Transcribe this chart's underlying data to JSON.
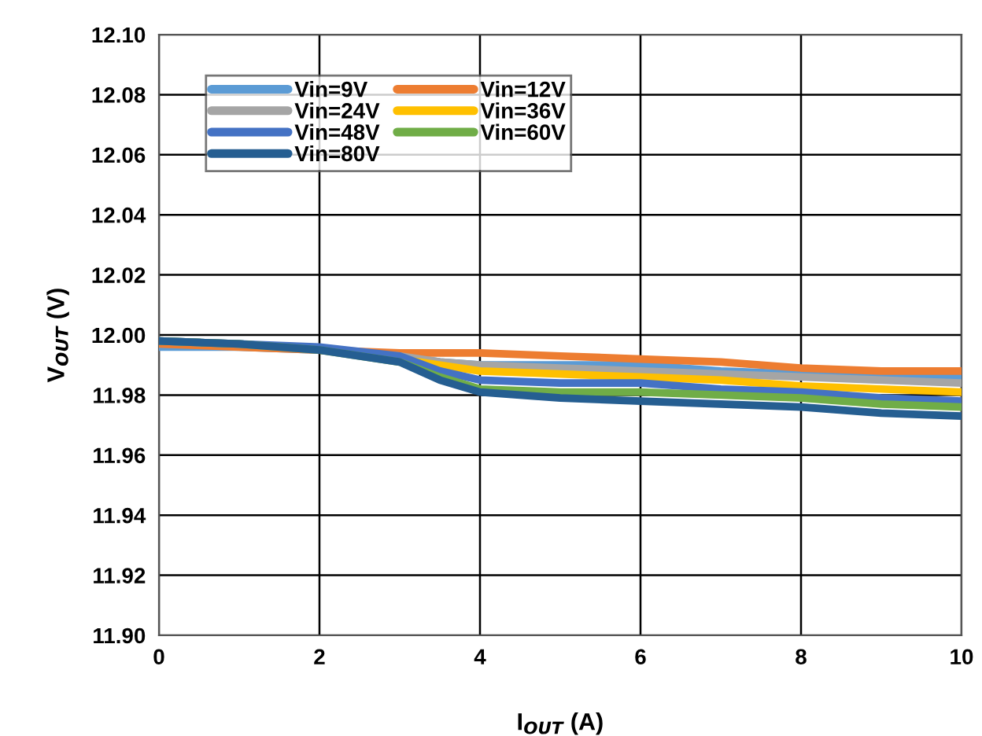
{
  "chart_data": {
    "type": "line",
    "xlabel": "I$_{OUT}$ (A)",
    "ylabel": "V$_{OUT}$ (V)",
    "x": [
      0,
      1,
      2,
      3,
      3.5,
      4,
      5,
      6,
      7,
      8,
      9,
      10
    ],
    "series": [
      {
        "name": "Vin=9V",
        "color": "#5b9bd5",
        "values": [
          11.996,
          11.996,
          11.995,
          11.993,
          11.991,
          11.99,
          11.99,
          11.99,
          11.988,
          11.987,
          11.986,
          11.986
        ]
      },
      {
        "name": "Vin=12V",
        "color": "#ed7d31",
        "values": [
          11.997,
          11.996,
          11.995,
          11.994,
          11.994,
          11.994,
          11.993,
          11.992,
          11.991,
          11.989,
          11.988,
          11.988
        ]
      },
      {
        "name": "Vin=24V",
        "color": "#a5a5a5",
        "values": [
          11.998,
          11.997,
          11.995,
          11.993,
          11.991,
          11.99,
          11.989,
          11.988,
          11.987,
          11.986,
          11.985,
          11.984
        ]
      },
      {
        "name": "Vin=36V",
        "color": "#ffc000",
        "values": [
          null,
          null,
          11.995,
          11.992,
          11.99,
          11.988,
          11.987,
          11.986,
          11.985,
          11.983,
          11.982,
          11.981
        ]
      },
      {
        "name": "Vin=48V",
        "color": "#4472c4",
        "values": [
          11.998,
          11.997,
          11.996,
          11.993,
          11.988,
          11.985,
          11.984,
          11.984,
          11.982,
          11.981,
          11.979,
          11.978
        ]
      },
      {
        "name": "Vin=60V",
        "color": "#70ad47",
        "values": [
          11.998,
          11.997,
          11.995,
          11.991,
          11.986,
          11.982,
          11.981,
          11.981,
          11.98,
          11.979,
          11.977,
          11.976
        ]
      },
      {
        "name": "Vin=80V",
        "color": "#255e91",
        "values": [
          11.998,
          11.997,
          11.995,
          11.991,
          11.985,
          11.981,
          11.979,
          11.978,
          11.977,
          11.976,
          11.974,
          11.973
        ]
      }
    ],
    "xlim": [
      0,
      10
    ],
    "xticks": [
      0,
      2,
      4,
      6,
      8,
      10
    ],
    "ylim": [
      11.9,
      12.1
    ],
    "yticks": [
      {
        "value": 11.9,
        "label": "11.90"
      },
      11.92,
      11.94,
      11.96,
      11.98,
      {
        "value": 12.0,
        "label": "12.00"
      },
      12.02,
      12.04,
      12.06,
      12.08,
      {
        "value": 12.1,
        "label": "12.10"
      }
    ],
    "grid": true,
    "legend": "top left",
    "line_style": "solid",
    "marker": "none"
  }
}
